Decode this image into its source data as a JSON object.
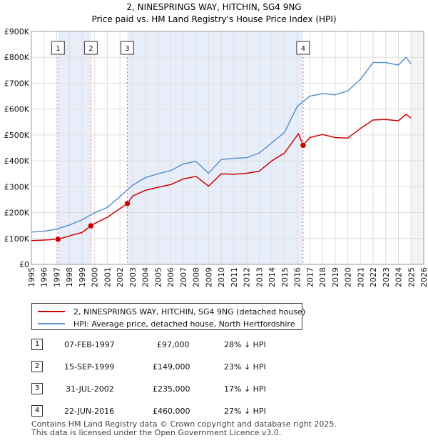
{
  "chart_data": {
    "type": "line",
    "title": "2, NINESPRINGS WAY, HITCHIN, SG4 9NG",
    "subtitle": "Price paid vs. HM Land Registry's House Price Index (HPI)",
    "xlim": [
      1995,
      2026
    ],
    "ylim": [
      0,
      900000
    ],
    "x_ticks": [
      "1995",
      "1996",
      "1997",
      "1998",
      "1999",
      "2000",
      "2001",
      "2002",
      "2003",
      "2004",
      "2005",
      "2006",
      "2007",
      "2008",
      "2009",
      "2010",
      "2011",
      "2012",
      "2013",
      "2014",
      "2015",
      "2016",
      "2017",
      "2018",
      "2019",
      "2020",
      "2021",
      "2022",
      "2023",
      "2024",
      "2025",
      "2026"
    ],
    "y_ticks": [
      {
        "value": 0,
        "label": "£0"
      },
      {
        "value": 100000,
        "label": "£100K"
      },
      {
        "value": 200000,
        "label": "£200K"
      },
      {
        "value": 300000,
        "label": "£300K"
      },
      {
        "value": 400000,
        "label": "£400K"
      },
      {
        "value": 500000,
        "label": "£500K"
      },
      {
        "value": 600000,
        "label": "£600K"
      },
      {
        "value": 700000,
        "label": "£700K"
      },
      {
        "value": 800000,
        "label": "£800K"
      },
      {
        "value": 900000,
        "label": "£900K"
      }
    ],
    "grid": true,
    "series": [
      {
        "name": "HPI: Average price, detached house, North Hertfordshire",
        "color": "#5b8fd0",
        "points": [
          [
            1995,
            125000
          ],
          [
            1996,
            128000
          ],
          [
            1997,
            136000
          ],
          [
            1998,
            152000
          ],
          [
            1999,
            172000
          ],
          [
            2000,
            200000
          ],
          [
            2001,
            220000
          ],
          [
            2002,
            262000
          ],
          [
            2003,
            306000
          ],
          [
            2004,
            335000
          ],
          [
            2005,
            350000
          ],
          [
            2006,
            362000
          ],
          [
            2007,
            388000
          ],
          [
            2008,
            398000
          ],
          [
            2009,
            352000
          ],
          [
            2010,
            405000
          ],
          [
            2011,
            410000
          ],
          [
            2012,
            412000
          ],
          [
            2013,
            430000
          ],
          [
            2014,
            470000
          ],
          [
            2015,
            510000
          ],
          [
            2016,
            610000
          ],
          [
            2017,
            650000
          ],
          [
            2018,
            660000
          ],
          [
            2019,
            655000
          ],
          [
            2020,
            670000
          ],
          [
            2021,
            715000
          ],
          [
            2022,
            780000
          ],
          [
            2023,
            780000
          ],
          [
            2024,
            770000
          ],
          [
            2024.6,
            800000
          ],
          [
            2025,
            775000
          ]
        ]
      },
      {
        "name": "2, NINESPRINGS WAY, HITCHIN, SG4 9NG (detached house)",
        "color": "#cc0000",
        "points": [
          [
            1995,
            92000
          ],
          [
            1996,
            94000
          ],
          [
            1997.1,
            97000
          ],
          [
            1998,
            110000
          ],
          [
            1999,
            123000
          ],
          [
            1999.7,
            149000
          ],
          [
            2000,
            158000
          ],
          [
            2001,
            182000
          ],
          [
            2002.58,
            235000
          ],
          [
            2003,
            264000
          ],
          [
            2004,
            286000
          ],
          [
            2005,
            298000
          ],
          [
            2006,
            308000
          ],
          [
            2007,
            330000
          ],
          [
            2008,
            340000
          ],
          [
            2009,
            302000
          ],
          [
            2010,
            350000
          ],
          [
            2011,
            348000
          ],
          [
            2012,
            352000
          ],
          [
            2013,
            360000
          ],
          [
            2014,
            400000
          ],
          [
            2015,
            430000
          ],
          [
            2016.1,
            505000
          ],
          [
            2016.47,
            460000
          ],
          [
            2017,
            490000
          ],
          [
            2018,
            502000
          ],
          [
            2019,
            490000
          ],
          [
            2020,
            488000
          ],
          [
            2021,
            525000
          ],
          [
            2022,
            558000
          ],
          [
            2023,
            560000
          ],
          [
            2024,
            555000
          ],
          [
            2024.6,
            580000
          ],
          [
            2025,
            565000
          ]
        ]
      }
    ],
    "sales": [
      {
        "id": "1",
        "x": 1997.1,
        "value": 97000
      },
      {
        "id": "2",
        "x": 1999.7,
        "value": 149000
      },
      {
        "id": "3",
        "x": 2002.58,
        "value": 235000
      },
      {
        "id": "4",
        "x": 2016.47,
        "value": 460000
      }
    ]
  },
  "legend": {
    "property": "2, NINESPRINGS WAY, HITCHIN, SG4 9NG (detached house)",
    "hpi": "HPI: Average price, detached house, North Hertfordshire",
    "property_color": "#cc0000",
    "hpi_color": "#5b8fd0"
  },
  "transactions": [
    {
      "num": "1",
      "date": "07-FEB-1997",
      "price": "£97,000",
      "delta": "28% ↓ HPI"
    },
    {
      "num": "2",
      "date": "15-SEP-1999",
      "price": "£149,000",
      "delta": "23% ↓ HPI"
    },
    {
      "num": "3",
      "date": "31-JUL-2002",
      "price": "£235,000",
      "delta": "17% ↓ HPI"
    },
    {
      "num": "4",
      "date": "22-JUN-2016",
      "price": "£460,000",
      "delta": "27% ↓ HPI"
    }
  ],
  "footer": {
    "line1": "Contains HM Land Registry data © Crown copyright and database right 2025.",
    "line2": "This data is licensed under the Open Government Licence v3.0."
  }
}
